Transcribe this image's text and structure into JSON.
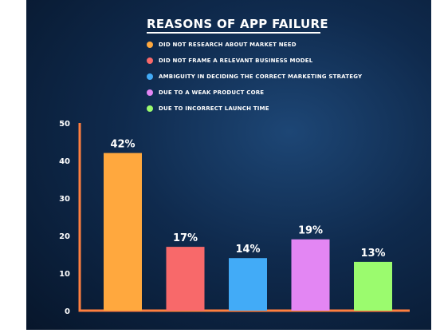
{
  "chart_data": {
    "type": "bar",
    "title": "REASONS OF APP FAILURE",
    "categories": [
      "DID NOT RESEARCH ABOUT MARKET NEED",
      "DID NOT FRAME A RELEVANT BUSINESS MODEL",
      "AMBIGUITY IN DECIDING THE CORRECT MARKETING STRATEGY",
      "DUE TO A WEAK PRODUCT CORE",
      "DUE TO INCORRECT LAUNCH TIME"
    ],
    "values": [
      42,
      17,
      14,
      19,
      13
    ],
    "data_labels": [
      "42%",
      "17%",
      "14%",
      "19%",
      "13%"
    ],
    "colors": [
      "#ffa83e",
      "#f8696a",
      "#42abf7",
      "#e386f3",
      "#9bfb6e"
    ],
    "ylim": [
      0,
      50
    ],
    "yticks": [
      0,
      10,
      20,
      30,
      40,
      50
    ],
    "ytick_labels": [
      "0",
      "10",
      "20",
      "30",
      "40",
      "50"
    ],
    "axis_color": "#ff7f3f",
    "legend_position": "top",
    "grid": false
  }
}
